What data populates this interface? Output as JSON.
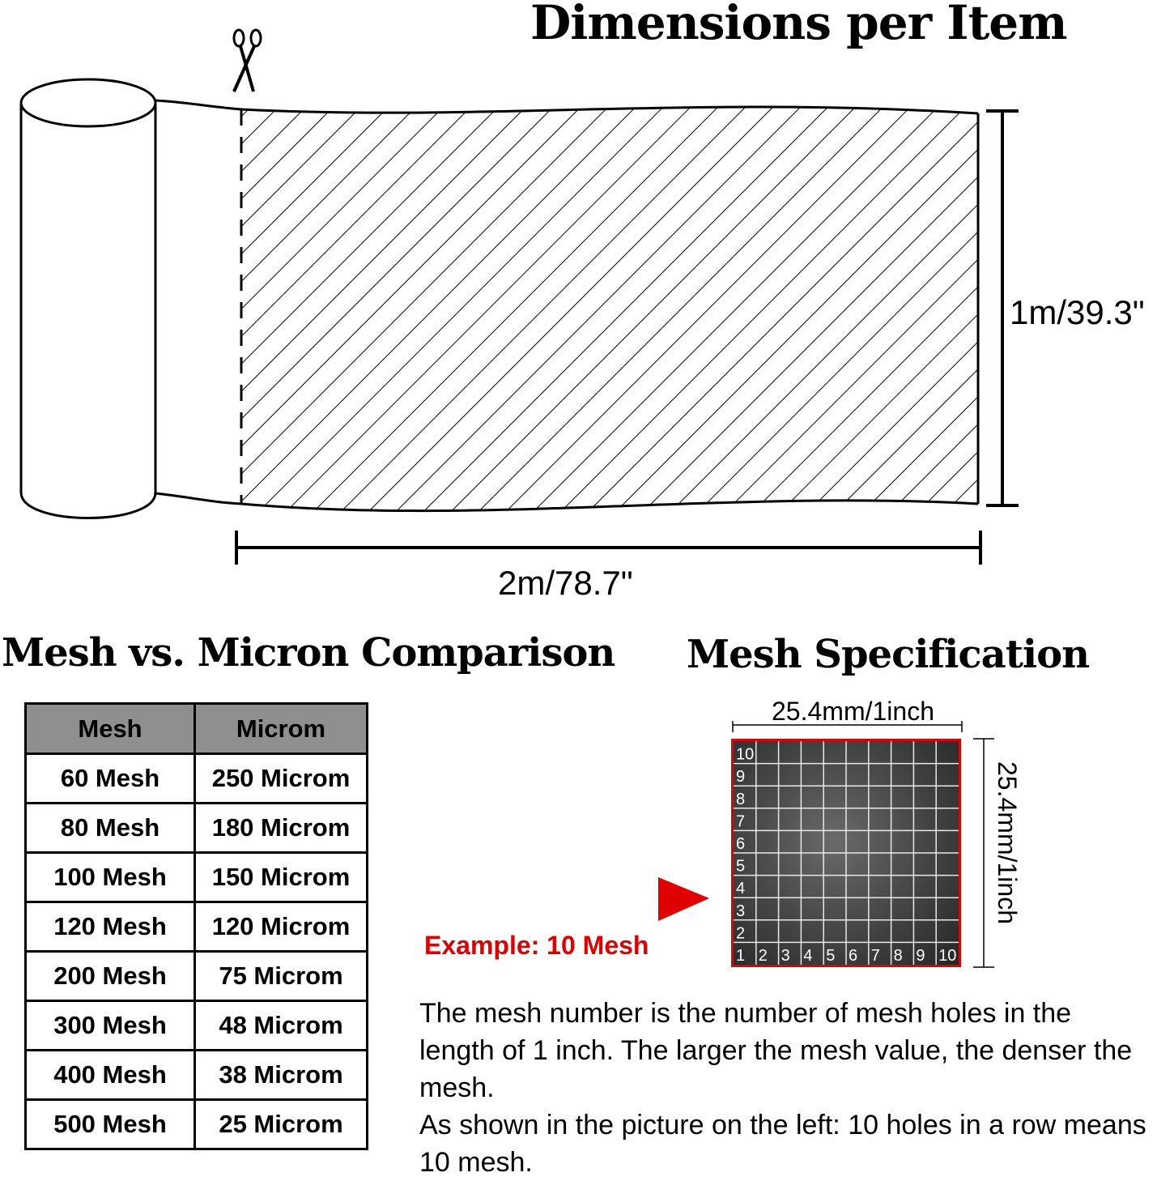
{
  "dimensions": {
    "title": "Dimensions per Item",
    "height_label": "1m/39.3\"",
    "width_label": "2m/78.7\""
  },
  "comparison": {
    "title": "Mesh vs. Micron Comparison",
    "headers": [
      "Mesh",
      "Microm"
    ],
    "rows": [
      [
        "60 Mesh",
        "250 Microm"
      ],
      [
        "80 Mesh",
        "180 Microm"
      ],
      [
        "100 Mesh",
        "150 Microm"
      ],
      [
        "120 Mesh",
        "120 Microm"
      ],
      [
        "200 Mesh",
        "75 Microm"
      ],
      [
        "300 Mesh",
        "48 Microm"
      ],
      [
        "400 Mesh",
        "38 Microm"
      ],
      [
        "500 Mesh",
        "25 Microm"
      ]
    ]
  },
  "specification": {
    "title": "Mesh Specification",
    "top_label": "25.4mm/1inch",
    "side_label": "25.4mm/1inch",
    "example_label": "Example: 10 Mesh",
    "grid_count": 10,
    "description_lines": [
      "The mesh number is the number of mesh holes in the length of 1 inch. The larger the mesh value, the denser the mesh.",
      "As shown in the picture on the left: 10 holes in a row means 10 mesh."
    ]
  },
  "colors": {
    "accent_red": "#e00000",
    "header_gray": "#8f8f8f"
  },
  "icons": [
    "scissors-icon",
    "red-arrow-icon"
  ]
}
